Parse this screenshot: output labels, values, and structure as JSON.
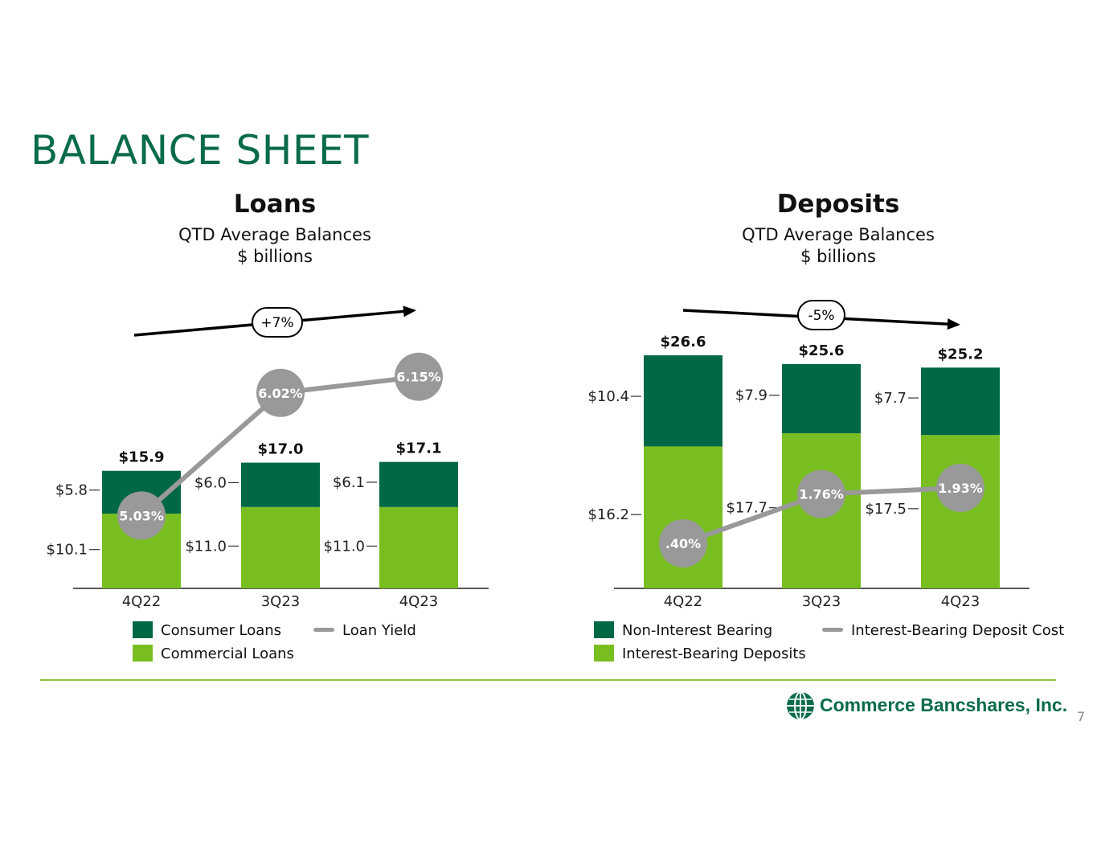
{
  "page": {
    "title": "BALANCE SHEET",
    "page_number": "7",
    "logo_text": "Commerce Bancshares, Inc.",
    "colors": {
      "dark_green": "#006845",
      "light_green": "#78be20",
      "gray": "#999999",
      "title_green": "#0a6b4b"
    }
  },
  "chart_data": [
    {
      "type": "bar",
      "stacked": true,
      "title": "Loans",
      "subtitle": [
        "QTD Average Balances",
        "$ billions"
      ],
      "categories": [
        "4Q22",
        "3Q23",
        "4Q23"
      ],
      "series": [
        {
          "name": "Commercial Loans",
          "values": [
            10.1,
            11.0,
            11.0
          ],
          "labels": [
            "$10.1",
            "$11.0",
            "$11.0"
          ],
          "color": "#78be20"
        },
        {
          "name": "Consumer Loans",
          "values": [
            5.8,
            6.0,
            6.1
          ],
          "labels": [
            "$5.8",
            "$6.0",
            "$6.1"
          ],
          "color": "#006845"
        }
      ],
      "totals": [
        "$15.9",
        "$17.0",
        "$17.1"
      ],
      "total_values": [
        15.9,
        17.0,
        17.1
      ],
      "line": {
        "name": "Loan Yield",
        "values": [
          5.03,
          6.02,
          6.15
        ],
        "labels": [
          "5.03%",
          "6.02%",
          "6.15%"
        ],
        "color": "#999999"
      },
      "trend": {
        "label": "+7%",
        "direction": "up"
      },
      "legend": [
        {
          "label": "Consumer Loans",
          "kind": "box",
          "color": "#006845"
        },
        {
          "label": "Loan Yield",
          "kind": "line",
          "color": "#999999"
        },
        {
          "label": "Commercial Loans",
          "kind": "box",
          "color": "#78be20"
        }
      ]
    },
    {
      "type": "bar",
      "stacked": true,
      "title": "Deposits",
      "subtitle": [
        "QTD Average Balances",
        "$ billions"
      ],
      "categories": [
        "4Q22",
        "3Q23",
        "4Q23"
      ],
      "series": [
        {
          "name": "Interest-Bearing Deposits",
          "values": [
            16.2,
            17.7,
            17.5
          ],
          "labels": [
            "$16.2",
            "$17.7",
            "$17.5"
          ],
          "color": "#78be20"
        },
        {
          "name": "Non-Interest Bearing",
          "values": [
            10.4,
            7.9,
            7.7
          ],
          "labels": [
            "$10.4",
            "$7.9",
            "$7.7"
          ],
          "color": "#006845"
        }
      ],
      "totals": [
        "$26.6",
        "$25.6",
        "$25.2"
      ],
      "total_values": [
        26.6,
        25.6,
        25.2
      ],
      "line": {
        "name": "Interest-Bearing Deposit Cost",
        "values": [
          0.4,
          1.76,
          1.93
        ],
        "labels": [
          ".40%",
          "1.76%",
          "1.93%"
        ],
        "color": "#999999"
      },
      "trend": {
        "label": "-5%",
        "direction": "down"
      },
      "legend": [
        {
          "label": "Non-Interest Bearing",
          "kind": "box",
          "color": "#006845"
        },
        {
          "label": "Interest-Bearing Deposit Cost",
          "kind": "line",
          "color": "#999999"
        },
        {
          "label": "Interest-Bearing Deposits",
          "kind": "box",
          "color": "#78be20"
        }
      ]
    }
  ]
}
